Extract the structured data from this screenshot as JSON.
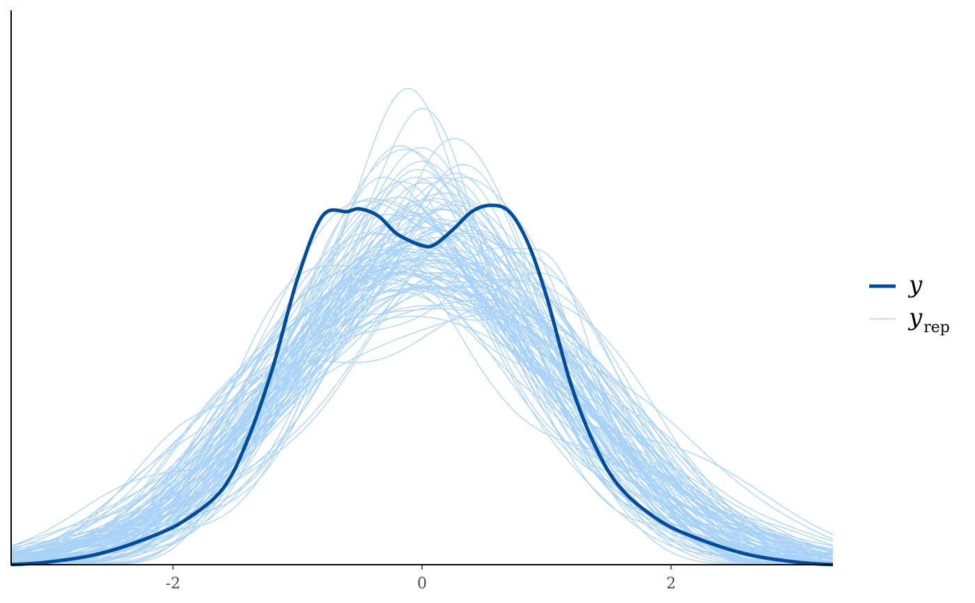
{
  "chart_data": {
    "type": "line",
    "title": "",
    "xlabel": "",
    "ylabel": "",
    "xlim": [
      -3.3,
      3.3
    ],
    "ylim": [
      0,
      0.62
    ],
    "x_ticks": [
      -2,
      0,
      2
    ],
    "x_tick_labels": [
      "-2",
      "0",
      "2"
    ],
    "y_axis_ticks_shown": false,
    "grid": false,
    "legend": {
      "placement": "right",
      "entries": [
        {
          "key": "y",
          "label": "y",
          "subscript": "",
          "color": "#004b9a",
          "style": "thick"
        },
        {
          "key": "yrep",
          "label": "y",
          "subscript": "rep",
          "color": "#a8d2f7",
          "style": "thin"
        }
      ]
    },
    "colors": {
      "y": "#004b9a",
      "yrep": "#a8d2f7"
    },
    "series": [
      {
        "name": "y",
        "description_points": {
          "x": [
            -3.3,
            -3.0,
            -2.6,
            -2.2,
            -1.9,
            -1.6,
            -1.4,
            -1.2,
            -1.0,
            -0.8,
            -0.6,
            -0.5,
            -0.35,
            -0.2,
            0.0,
            0.1,
            0.25,
            0.4,
            0.55,
            0.7,
            0.85,
            1.0,
            1.2,
            1.4,
            1.6,
            1.9,
            2.2,
            2.6,
            3.0,
            3.3
          ],
          "y": [
            0.0,
            0.003,
            0.012,
            0.03,
            0.05,
            0.085,
            0.14,
            0.22,
            0.32,
            0.39,
            0.395,
            0.398,
            0.39,
            0.37,
            0.357,
            0.358,
            0.375,
            0.395,
            0.402,
            0.395,
            0.36,
            0.3,
            0.2,
            0.13,
            0.085,
            0.05,
            0.03,
            0.012,
            0.003,
            0.0
          ]
        }
      }
    ],
    "yrep_count": 100,
    "yrep_summary": {
      "center_range": [
        -0.5,
        0.6
      ],
      "sd_range": [
        0.8,
        1.2
      ],
      "peak_density_range": [
        0.26,
        0.62
      ]
    }
  }
}
